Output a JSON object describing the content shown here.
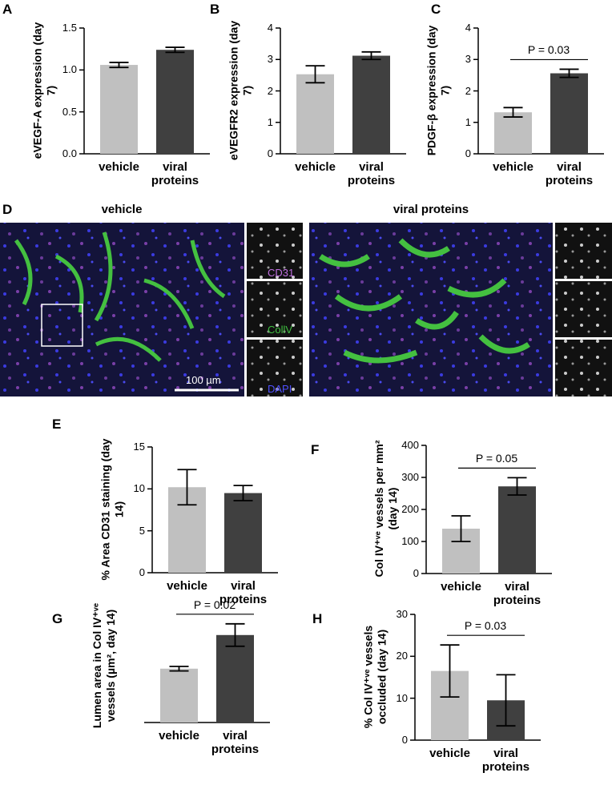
{
  "chart_data": [
    {
      "type": "bar",
      "panel": "A",
      "ylabel": "eVEGF-A expression (day 7)",
      "categories": [
        "vehicle",
        "viral proteins"
      ],
      "values": [
        1.06,
        1.24
      ],
      "errors": [
        0.03,
        0.03
      ],
      "colors": [
        "#c0c0c0",
        "#404040"
      ],
      "ylim": [
        0,
        1.5
      ],
      "yticks": [
        {
          "value": 0,
          "label": "0.0"
        },
        {
          "value": 0.5,
          "label": "0.5"
        },
        {
          "value": 1,
          "label": "1.0"
        },
        {
          "value": 1.5,
          "label": "1.5"
        }
      ]
    },
    {
      "type": "bar",
      "panel": "B",
      "ylabel": "eVEGFR2 expression (day 7)",
      "categories": [
        "vehicle",
        "viral proteins"
      ],
      "values": [
        2.53,
        3.12
      ],
      "errors": [
        0.27,
        0.12
      ],
      "colors": [
        "#c0c0c0",
        "#404040"
      ],
      "ylim": [
        0,
        4
      ],
      "yticks": [
        0,
        1,
        2,
        3,
        4
      ]
    },
    {
      "type": "bar",
      "panel": "C",
      "ylabel": "PDGF-β expression (day 7)",
      "categories": [
        "vehicle",
        "viral proteins"
      ],
      "values": [
        1.32,
        2.56
      ],
      "errors": [
        0.15,
        0.13
      ],
      "colors": [
        "#c0c0c0",
        "#404040"
      ],
      "ylim": [
        0,
        4
      ],
      "yticks": [
        0,
        1,
        2,
        3,
        4
      ],
      "annotation": "P = 0.03"
    },
    {
      "type": "bar",
      "panel": "E",
      "ylabel": "% Area CD31 staining (day 14)",
      "categories": [
        "vehicle",
        "viral proteins"
      ],
      "values": [
        10.2,
        9.5
      ],
      "errors": [
        2.1,
        0.9
      ],
      "colors": [
        "#c0c0c0",
        "#404040"
      ],
      "ylim": [
        0,
        15
      ],
      "yticks": [
        0,
        5,
        10,
        15
      ]
    },
    {
      "type": "bar",
      "panel": "F",
      "ylabel": "Col IV⁺ᵛᵉ vessels per mm² (day 14)",
      "categories": [
        "vehicle",
        "viral proteins"
      ],
      "values": [
        140,
        272
      ],
      "errors": [
        40,
        27
      ],
      "colors": [
        "#c0c0c0",
        "#404040"
      ],
      "ylim": [
        0,
        400
      ],
      "yticks": [
        0,
        100,
        200,
        300,
        400
      ],
      "annotation": "P = 0.05"
    },
    {
      "type": "bar",
      "panel": "G",
      "ylabel": "Lumen area in Col IV⁺ᵛᵉ vessels (µm², day 14)",
      "categories": [
        "vehicle",
        "viral proteins"
      ],
      "values": [
        48,
        78
      ],
      "errors": [
        2,
        10
      ],
      "colors": [
        "#c0c0c0",
        "#404040"
      ],
      "ylim": [
        0,
        100
      ],
      "annotation": "P = 0.02"
    },
    {
      "type": "bar",
      "panel": "H",
      "ylabel": "% Col IV⁺ᵛᵉ vessels occluded (day 14)",
      "categories": [
        "vehicle",
        "viral proteins"
      ],
      "values": [
        16.5,
        9.5
      ],
      "errors": [
        6.2,
        6.1
      ],
      "colors": [
        "#c0c0c0",
        "#404040"
      ],
      "ylim": [
        0,
        30
      ],
      "yticks": [
        0,
        10,
        20,
        30
      ],
      "annotation": "P = 0.03"
    }
  ],
  "panel_d": {
    "panel": "D",
    "left_title": "vehicle",
    "right_title": "viral proteins",
    "channels": [
      "CD31",
      "CollV",
      "DAPI"
    ],
    "scale_bar": "100 µm"
  }
}
